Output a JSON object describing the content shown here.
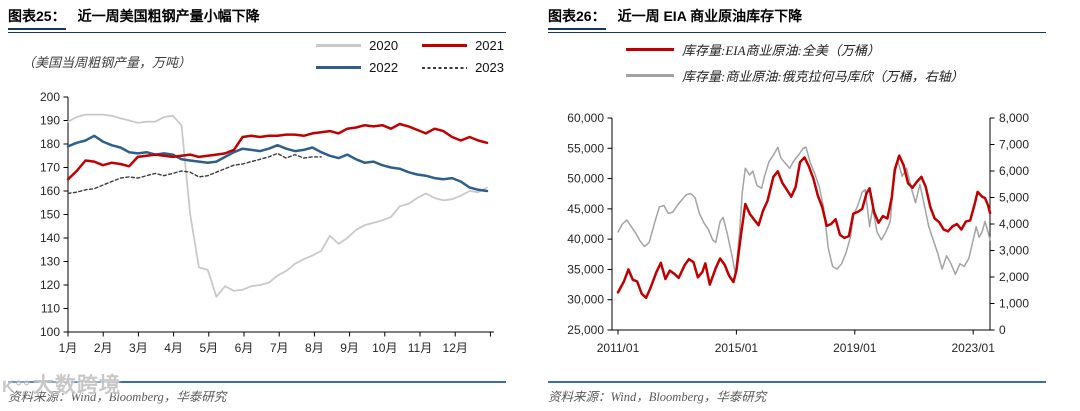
{
  "page": {
    "background": "#ffffff",
    "accent_navy": "#17375e",
    "footer_rule_color": "#3a6ea5"
  },
  "watermark": {
    "logo": "K°°",
    "text": "大数跨境"
  },
  "figures": [
    {
      "label": "图表25：",
      "title": "近一周美国粗钢产量小幅下降",
      "subtitle": "（美国当周粗钢产量，万吨）",
      "source": "资料来源：Wind，Bloomberg，华泰研究",
      "legend": [
        {
          "name": "2020",
          "color": "#c9c9c9",
          "dash": false
        },
        {
          "name": "2021",
          "color": "#c00000",
          "dash": false
        },
        {
          "name": "2022",
          "color": "#2e5f8c",
          "dash": false
        },
        {
          "name": "2023",
          "color": "#3a3a3a",
          "dash": true
        }
      ]
    },
    {
      "label": "图表26：",
      "title": "近一周 EIA 商业原油库存下降",
      "subtitle": "",
      "source": "资料来源：Wind，Bloomberg，华泰研究",
      "legend": [
        {
          "name": "库存量:EIA商业原油:全美（万桶）",
          "color": "#c00000",
          "dash": false
        },
        {
          "name": "库存量:商业原油:俄克拉何马库欣（万桶，右轴）",
          "color": "#a3a3a3",
          "dash": false
        }
      ]
    }
  ],
  "chart_data": [
    {
      "type": "line",
      "title": "近一周美国粗钢产量小幅下降",
      "ylabel": "美国当周粗钢产量（万吨）",
      "x_axis": {
        "ticks": [
          1,
          2,
          3,
          4,
          5,
          6,
          7,
          8,
          9,
          10,
          11,
          12,
          13
        ],
        "tick_labels": [
          "1月",
          "2月",
          "3月",
          "4月",
          "5月",
          "6月",
          "7月",
          "8月",
          "9月",
          "10月",
          "11月",
          "12月"
        ]
      },
      "y_axis": {
        "range": [
          100,
          200
        ],
        "ticks": [
          100,
          110,
          120,
          130,
          140,
          150,
          160,
          170,
          180,
          190,
          200
        ],
        "tick_labels": [
          "100",
          "110",
          "120",
          "130",
          "140",
          "150",
          "160",
          "170",
          "180",
          "190",
          "200"
        ]
      },
      "series": [
        {
          "name": "2020",
          "color": "#c9c9c9",
          "width": 1.8,
          "dash": null,
          "x_start": 1,
          "x_step": 0.248,
          "values": [
            189.5,
            191.5,
            192.5,
            192.5,
            192.5,
            192,
            191,
            190,
            189,
            189.5,
            189.5,
            191.5,
            192,
            188,
            150,
            127.5,
            126.5,
            115,
            119.5,
            117.5,
            118,
            119.5,
            120,
            121,
            124,
            126,
            129,
            131,
            132.5,
            134.5,
            141,
            137.5,
            140,
            143.5,
            145.5,
            146.5,
            147.5,
            149,
            153.5,
            154.5,
            157,
            159,
            157,
            156,
            156.5,
            158,
            160,
            159.5,
            161.5
          ]
        },
        {
          "name": "2023",
          "color": "#3a3a3a",
          "width": 1.4,
          "dash": "3 2.5",
          "x_start": 1,
          "x_step": 0.248,
          "values": [
            159,
            159.5,
            160.5,
            161,
            162.5,
            164,
            165.5,
            166,
            165.5,
            166.5,
            167.5,
            166.5,
            167.5,
            168.5,
            168,
            166,
            166.5,
            168,
            169.5,
            171,
            171.5,
            172.5,
            173.5,
            174.5,
            176,
            174,
            175.5,
            174,
            174.5,
            174.5
          ]
        },
        {
          "name": "2022",
          "color": "#2e5f8c",
          "width": 2.5,
          "dash": null,
          "x_start": 1,
          "x_step": 0.248,
          "values": [
            179,
            180.5,
            181.5,
            183.5,
            181,
            179.5,
            178.5,
            176.5,
            176,
            176.5,
            175.5,
            176,
            175.5,
            173.5,
            173,
            172.5,
            172,
            172.5,
            174.5,
            176.5,
            178,
            177.5,
            177,
            178,
            179.5,
            178,
            177,
            177.5,
            178.5,
            176.5,
            175,
            174,
            175.5,
            173.5,
            172,
            172.5,
            171,
            170,
            169.5,
            168,
            167,
            166.5,
            165.5,
            165,
            165.5,
            164,
            161.5,
            160.5,
            160
          ]
        },
        {
          "name": "2021",
          "color": "#c00000",
          "width": 2.5,
          "dash": null,
          "x_start": 1,
          "x_step": 0.248,
          "values": [
            165,
            168.5,
            173,
            172.5,
            171,
            172,
            171.5,
            170.5,
            174.5,
            175,
            175.5,
            175,
            174.5,
            175,
            175.5,
            174.5,
            175,
            175.5,
            176,
            177.5,
            183,
            183.5,
            183,
            183.5,
            183.5,
            184,
            184,
            183.5,
            184.5,
            185,
            185.5,
            184.5,
            186.5,
            187,
            188,
            187.5,
            188,
            186.5,
            188.5,
            187.5,
            186,
            184.5,
            186.5,
            185.5,
            183,
            181.5,
            183,
            181.5,
            180.5
          ]
        }
      ]
    },
    {
      "type": "line",
      "title": "近一周 EIA 商业原油库存下降",
      "x_axis": {
        "ticks": [
          2011,
          2015,
          2019,
          2023
        ],
        "tick_labels": [
          "2011/01",
          "2015/01",
          "2019/01",
          "2023/01"
        ]
      },
      "y_left": {
        "range": [
          25000,
          60000
        ],
        "ticks": [
          25000,
          30000,
          35000,
          40000,
          45000,
          50000,
          55000,
          60000
        ],
        "tick_labels": [
          "25,000",
          "30,000",
          "35,000",
          "40,000",
          "45,000",
          "50,000",
          "55,000",
          "60,000"
        ]
      },
      "y_right": {
        "range": [
          0,
          8000
        ],
        "ticks": [
          0,
          1000,
          2000,
          3000,
          4000,
          5000,
          6000,
          7000,
          8000
        ],
        "tick_labels": [
          "0",
          "1,000",
          "2,000",
          "3,000",
          "4,000",
          "5,000",
          "6,000",
          "7,000",
          "8,000"
        ]
      },
      "series": [
        {
          "name": "库存量:商业原油:俄克拉何马库欣（万桶，右轴）",
          "axis": "right",
          "color": "#a3a3a3",
          "width": 1.5,
          "dash": null,
          "x": [
            2011.0,
            2011.15,
            2011.3,
            2011.45,
            2011.6,
            2011.75,
            2011.9,
            2012.05,
            2012.25,
            2012.4,
            2012.55,
            2012.7,
            2012.85,
            2013.0,
            2013.15,
            2013.3,
            2013.45,
            2013.6,
            2013.75,
            2013.9,
            2014.05,
            2014.2,
            2014.3,
            2014.45,
            2014.55,
            2014.7,
            2014.85,
            2014.97,
            2015.1,
            2015.2,
            2015.3,
            2015.45,
            2015.55,
            2015.7,
            2015.85,
            2015.95,
            2016.1,
            2016.25,
            2016.4,
            2016.5,
            2016.65,
            2016.8,
            2016.95,
            2017.1,
            2017.25,
            2017.35,
            2017.5,
            2017.65,
            2017.8,
            2017.95,
            2018.1,
            2018.25,
            2018.4,
            2018.55,
            2018.7,
            2018.85,
            2018.95,
            2019.1,
            2019.25,
            2019.35,
            2019.5,
            2019.6,
            2019.75,
            2019.9,
            2020.05,
            2020.2,
            2020.3,
            2020.45,
            2020.6,
            2020.75,
            2020.9,
            2021.05,
            2021.2,
            2021.35,
            2021.5,
            2021.65,
            2021.8,
            2021.95,
            2022.1,
            2022.25,
            2022.4,
            2022.55,
            2022.7,
            2022.85,
            2023.0,
            2023.1,
            2023.2,
            2023.3,
            2023.4,
            2023.5,
            2023.57
          ],
          "values": [
            3700,
            4000,
            4150,
            3900,
            3650,
            3350,
            3150,
            3300,
            4100,
            4650,
            4700,
            4400,
            4450,
            4700,
            4900,
            5100,
            5150,
            5000,
            4400,
            4050,
            3800,
            3400,
            3300,
            4100,
            4250,
            3600,
            2800,
            2100,
            3600,
            5200,
            6100,
            5850,
            6000,
            5450,
            5350,
            5800,
            6350,
            6600,
            6900,
            6500,
            6300,
            6100,
            6400,
            6600,
            6850,
            6900,
            6300,
            5900,
            5400,
            4600,
            3100,
            2400,
            2300,
            2500,
            2900,
            3500,
            4300,
            4700,
            5200,
            5300,
            3900,
            4600,
            3700,
            3400,
            3700,
            4100,
            5600,
            6400,
            5800,
            6100,
            5400,
            4800,
            5500,
            4700,
            3900,
            3400,
            2900,
            2300,
            2800,
            2500,
            2100,
            2500,
            2400,
            2700,
            3400,
            3900,
            3500,
            3700,
            4100,
            3700,
            3400
          ]
        },
        {
          "name": "库存量:EIA商业原油:全美（万桶）",
          "axis": "left",
          "color": "#c00000",
          "width": 2.5,
          "dash": null,
          "x": [
            2011.0,
            2011.2,
            2011.35,
            2011.5,
            2011.65,
            2011.8,
            2011.95,
            2012.1,
            2012.3,
            2012.45,
            2012.6,
            2012.75,
            2012.9,
            2013.05,
            2013.25,
            2013.4,
            2013.55,
            2013.7,
            2013.85,
            2013.95,
            2014.1,
            2014.3,
            2014.45,
            2014.6,
            2014.75,
            2014.9,
            2015.0,
            2015.15,
            2015.3,
            2015.45,
            2015.6,
            2015.75,
            2015.9,
            2016.05,
            2016.25,
            2016.4,
            2016.55,
            2016.7,
            2016.85,
            2017.0,
            2017.15,
            2017.3,
            2017.45,
            2017.6,
            2017.75,
            2017.9,
            2018.05,
            2018.2,
            2018.35,
            2018.5,
            2018.65,
            2018.8,
            2018.95,
            2019.1,
            2019.25,
            2019.4,
            2019.5,
            2019.65,
            2019.8,
            2019.95,
            2020.1,
            2020.25,
            2020.35,
            2020.5,
            2020.65,
            2020.8,
            2020.95,
            2021.1,
            2021.25,
            2021.4,
            2021.55,
            2021.7,
            2021.85,
            2022.0,
            2022.15,
            2022.3,
            2022.45,
            2022.6,
            2022.75,
            2022.9,
            2023.05,
            2023.15,
            2023.3,
            2023.4,
            2023.5,
            2023.57
          ],
          "values": [
            31200,
            33000,
            35000,
            33300,
            33000,
            31000,
            30300,
            32000,
            34600,
            36100,
            33400,
            34800,
            34300,
            33600,
            35700,
            36700,
            36200,
            33700,
            34600,
            36000,
            32500,
            35200,
            36800,
            35800,
            34000,
            32900,
            34800,
            40500,
            45800,
            44200,
            43200,
            42300,
            44700,
            46300,
            50300,
            51200,
            49300,
            48200,
            47000,
            48600,
            52700,
            53500,
            52000,
            50000,
            47200,
            45300,
            42200,
            42500,
            43300,
            40700,
            40200,
            40500,
            44200,
            44500,
            45000,
            47600,
            48400,
            44500,
            42700,
            43800,
            43400,
            46900,
            51500,
            53800,
            52200,
            49200,
            48500,
            49500,
            50300,
            48600,
            45300,
            43400,
            42800,
            41600,
            41300,
            42100,
            42500,
            41600,
            42900,
            43100,
            45800,
            47800,
            47000,
            46800,
            45600,
            44300
          ]
        }
      ]
    }
  ]
}
